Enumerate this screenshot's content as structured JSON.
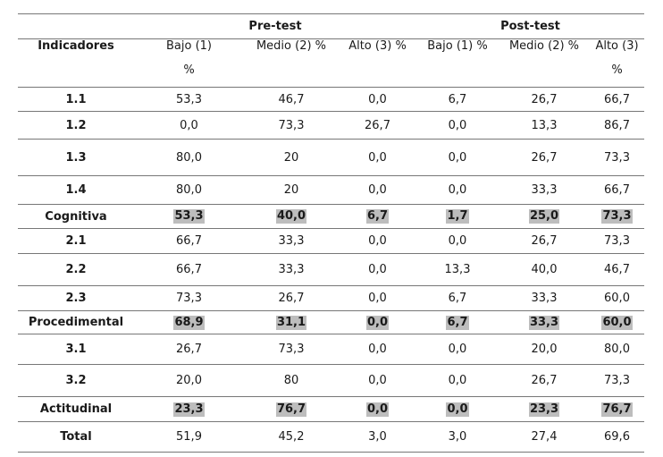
{
  "header": {
    "group_pre": "Pre-test",
    "group_post": "Post-test",
    "indicadores": "Indicadores",
    "columns": [
      "Bajo (1)",
      "Medio (2) %",
      "Alto (3) %",
      "Bajo (1) %",
      "Medio (2) %",
      "Alto (3)"
    ],
    "pct": "%"
  },
  "rows": [
    {
      "label": "1.1",
      "values": [
        "53,3",
        "46,7",
        "0,0",
        "6,7",
        "26,7",
        "66,7"
      ]
    },
    {
      "label": "1.2",
      "values": [
        "0,0",
        "73,3",
        "26,7",
        "0,0",
        "13,3",
        "86,7"
      ]
    },
    {
      "label": "1.3",
      "values": [
        "80,0",
        "20",
        "0,0",
        "0,0",
        "26,7",
        "73,3"
      ]
    },
    {
      "label": "1.4",
      "values": [
        "80,0",
        "20",
        "0,0",
        "0,0",
        "33,3",
        "66,7"
      ]
    },
    {
      "label": "Cognitiva",
      "values": [
        "53,3",
        "40,0",
        "6,7",
        "1,7",
        "25,0",
        "73,3"
      ]
    },
    {
      "label": "2.1",
      "values": [
        "66,7",
        "33,3",
        "0,0",
        "0,0",
        "26,7",
        "73,3"
      ]
    },
    {
      "label": "2.2",
      "values": [
        "66,7",
        "33,3",
        "0,0",
        "13,3",
        "40,0",
        "46,7"
      ]
    },
    {
      "label": "2.3",
      "values": [
        "73,3",
        "26,7",
        "0,0",
        "6,7",
        "33,3",
        "60,0"
      ]
    },
    {
      "label": "Procedimental",
      "values": [
        "68,9",
        "31,1",
        "0,0",
        "6,7",
        "33,3",
        "60,0"
      ]
    },
    {
      "label": "3.1",
      "values": [
        "26,7",
        "73,3",
        "0,0",
        "0,0",
        "20,0",
        "80,0"
      ]
    },
    {
      "label": "3.2",
      "values": [
        "20,0",
        "80",
        "0,0",
        "0,0",
        "26,7",
        "73,3"
      ]
    },
    {
      "label": "Actitudinal",
      "values": [
        "23,3",
        "76,7",
        "0,0",
        "0,0",
        "23,3",
        "76,7"
      ]
    },
    {
      "label": "Total",
      "values": [
        "51,9",
        "45,2",
        "3,0",
        "3,0",
        "27,4",
        "69,6"
      ]
    }
  ]
}
